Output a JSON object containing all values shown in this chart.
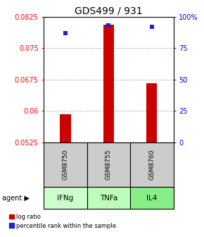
{
  "title": "GDS499 / 931",
  "samples": [
    "GSM8750",
    "GSM8755",
    "GSM8760"
  ],
  "agents": [
    "IFNg",
    "TNFa",
    "IL4"
  ],
  "log_ratios": [
    0.0592,
    0.0805,
    0.0665
  ],
  "percentile_ranks": [
    87,
    93,
    92
  ],
  "ylim_left": [
    0.0525,
    0.0825
  ],
  "ylim_right": [
    0,
    100
  ],
  "yticks_left": [
    0.0525,
    0.06,
    0.0675,
    0.075,
    0.0825
  ],
  "yticks_right": [
    0,
    25,
    50,
    75,
    100
  ],
  "ytick_labels_left": [
    "0.0525",
    "0.06",
    "0.0675",
    "0.075",
    "0.0825"
  ],
  "ytick_labels_right": [
    "0",
    "25",
    "50",
    "75",
    "100%"
  ],
  "bar_color": "#cc0000",
  "dot_color": "#2222cc",
  "agent_colors": [
    "#ccffcc",
    "#bbffbb",
    "#88ee88"
  ],
  "sample_box_color": "#cccccc",
  "grid_color": "#888888",
  "title_fontsize": 10,
  "tick_fontsize": 7,
  "bar_width": 0.25,
  "dot_size": 5
}
